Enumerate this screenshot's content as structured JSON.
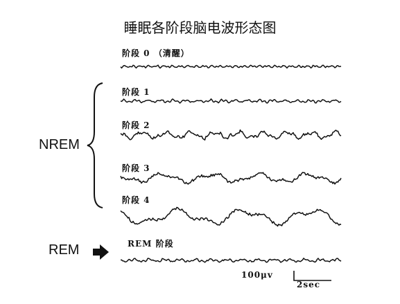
{
  "title": "睡眠各阶段脑电波形态图",
  "groups": {
    "nrem": "NREM",
    "rem": "REM"
  },
  "stages": [
    {
      "key": "s0",
      "label": "阶段 0 （清醒）",
      "amplitude": 1.6,
      "freq": 0.55,
      "seed": 3
    },
    {
      "key": "s1",
      "label": "阶段 1",
      "amplitude": 2.2,
      "freq": 0.35,
      "seed": 7
    },
    {
      "key": "s2",
      "label": "阶段 2",
      "amplitude": 6.5,
      "freq": 0.18,
      "seed": 11
    },
    {
      "key": "s3",
      "label": "阶段 3",
      "amplitude": 8.5,
      "freq": 0.09,
      "seed": 17
    },
    {
      "key": "s4",
      "label": "阶段 4",
      "amplitude": 14,
      "freq": 0.065,
      "seed": 23
    },
    {
      "key": "rem",
      "label": "REM 阶段",
      "amplitude": 2.6,
      "freq": 0.28,
      "seed": 29
    }
  ],
  "scale": {
    "voltage": "100μv",
    "time": "2sec"
  },
  "colors": {
    "ink": "#111111"
  }
}
